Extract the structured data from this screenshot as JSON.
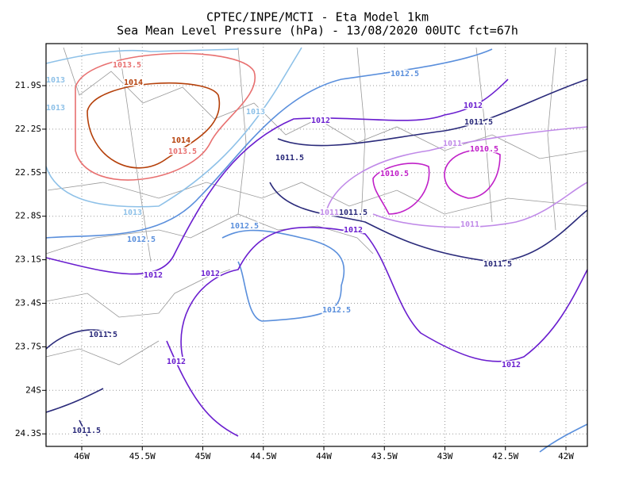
{
  "title": "CPTEC/INPE/MCTI -  Eta Model 1km",
  "subtitle": "Sea Mean Level Pressure (hPa) - 13/08/2020 00UTC fct=67h",
  "lon_labels": [
    "46W",
    "45.5W",
    "45W",
    "44.5W",
    "44W",
    "43.5W",
    "43W",
    "42.5W",
    "42W"
  ],
  "lat_labels": [
    "21.9S",
    "22.2S",
    "22.5S",
    "22.8S",
    "23.1S",
    "23.4S",
    "23.7S",
    "24S",
    "24.3S"
  ],
  "contour_labels": [
    "1013.5",
    "1014",
    "1013",
    "1013",
    "1013",
    "1014",
    "1013.5",
    "1012.5",
    "1012",
    "1011.5",
    "1012",
    "1011.5",
    "1011",
    "1010.5",
    "1010.5",
    "1013",
    "1011",
    "1011.5",
    "1012.5",
    "1012.5",
    "1012",
    "1011",
    "1011.5",
    "1012",
    "1012",
    "1012.5",
    "1011.5",
    "1012",
    "1012",
    "1011.5"
  ]
}
